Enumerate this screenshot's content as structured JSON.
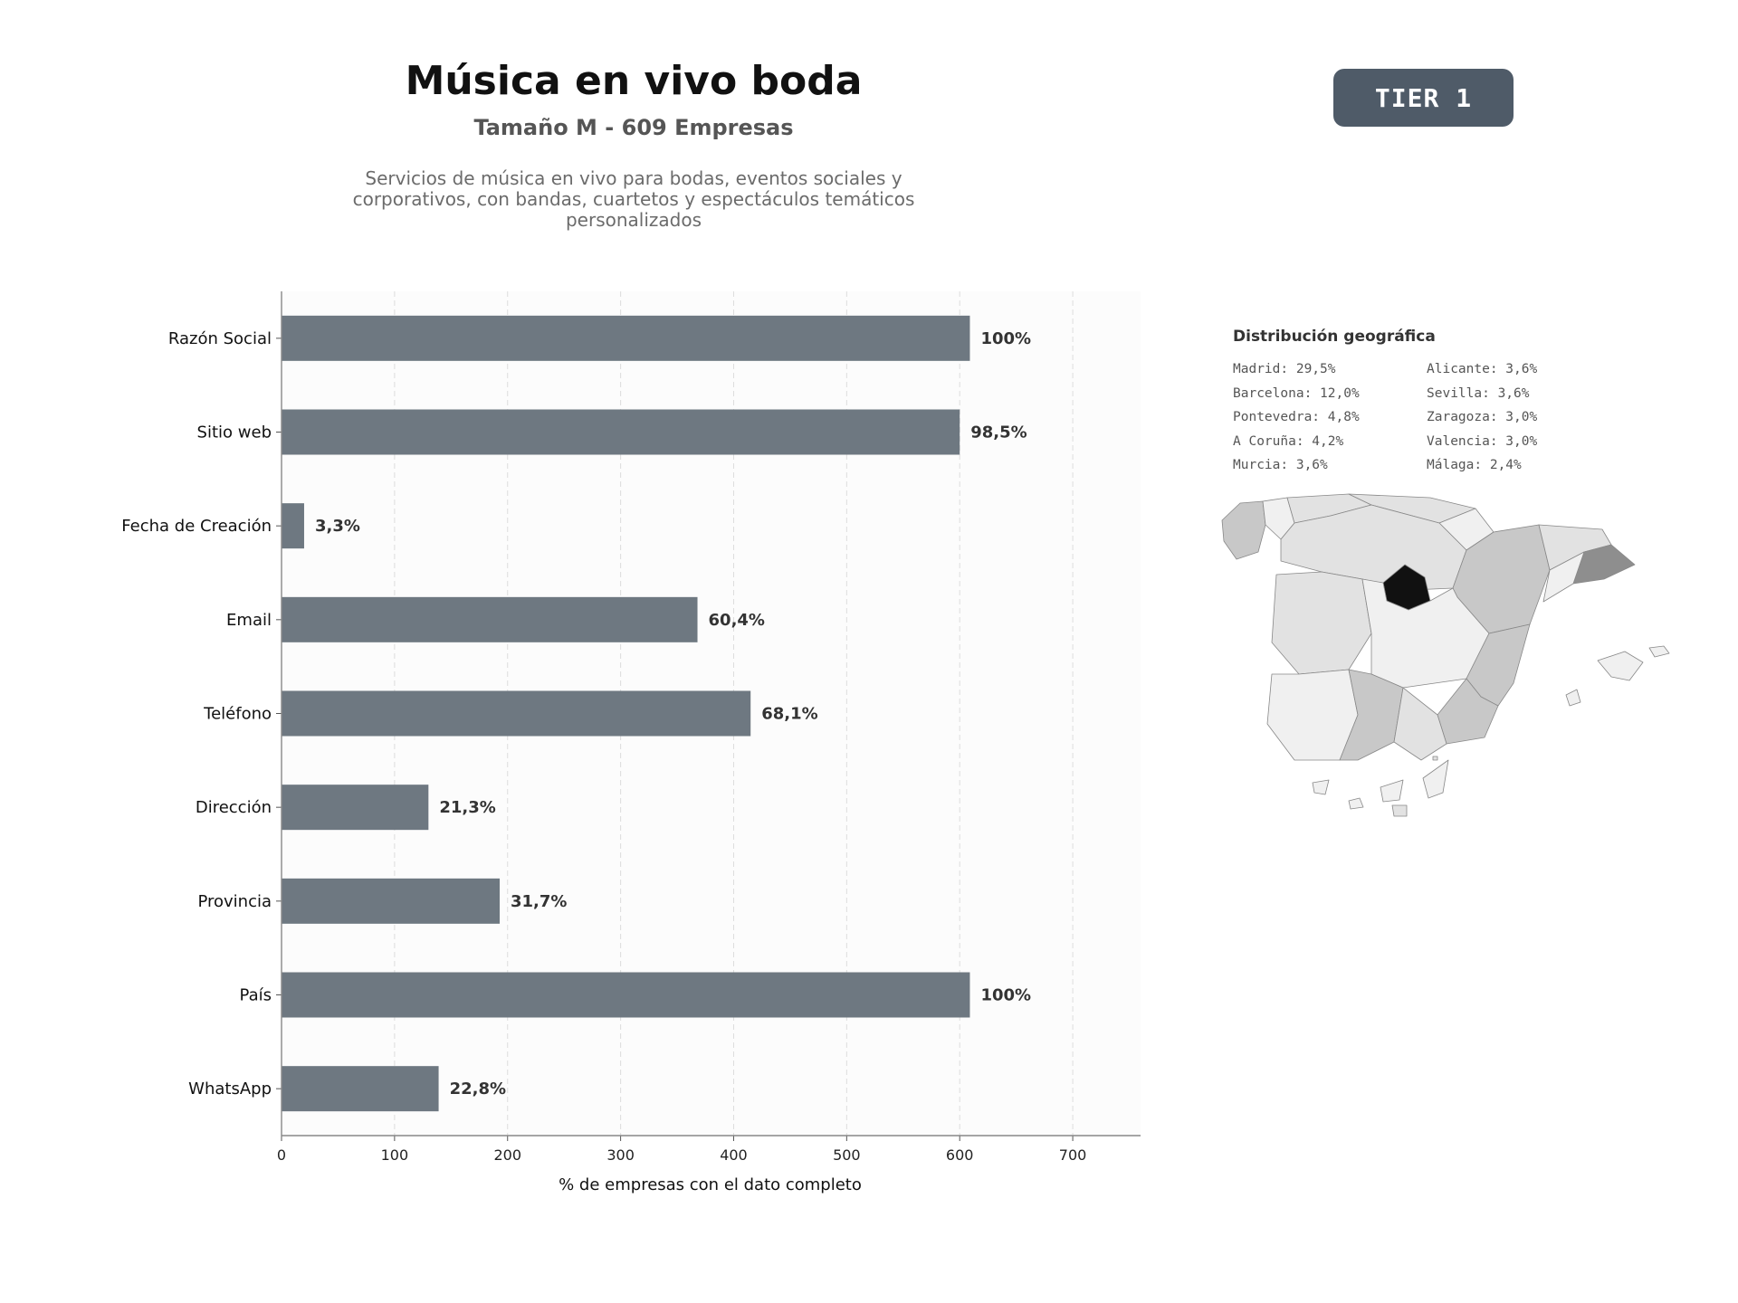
{
  "header": {
    "title": "Música en vivo boda",
    "subtitle": "Tamaño M - 609 Empresas",
    "description_lines": [
      "Servicios de música en vivo para bodas, eventos sociales y",
      "corporativos, con bandas, cuartetos y espectáculos temáticos",
      "personalizados"
    ],
    "tier": "TIER 1"
  },
  "chart_data": {
    "type": "bar",
    "orientation": "horizontal",
    "categories": [
      "Razón Social",
      "Sitio web",
      "Fecha de Creación",
      "Email",
      "Teléfono",
      "Dirección",
      "Provincia",
      "País",
      "WhatsApp"
    ],
    "values": [
      609,
      600,
      20,
      368,
      415,
      130,
      193,
      609,
      139
    ],
    "data_labels": [
      "100%",
      "98,5%",
      "3,3%",
      "60,4%",
      "68,1%",
      "21,3%",
      "31,7%",
      "100%",
      "22,8%"
    ],
    "xlabel": "% de empresas con el dato completo",
    "ylabel": "",
    "xlim": [
      0,
      760
    ],
    "xticks": [
      0,
      100,
      200,
      300,
      400,
      500,
      600,
      700
    ],
    "grid": "vertical dashed",
    "colors": {
      "bar": "#6e7881",
      "plot_bg": "#fcfcfc",
      "axis": "#888888"
    }
  },
  "geo": {
    "title": "Distribución geográfica",
    "items": [
      "Madrid: 29,5%",
      "Alicante: 3,6%",
      "Barcelona: 12,0%",
      "Sevilla: 3,6%",
      "Pontevedra: 4,8%",
      "Zaragoza: 3,0%",
      "A Coruña: 4,2%",
      "Valencia: 3,0%",
      "Murcia: 3,6%",
      "Málaga: 2,4%"
    ],
    "map_colors": {
      "madrid": "#111111",
      "barcelona": "#8e8e8e",
      "medium": "#c8c8c8",
      "light": "#e2e2e2",
      "lighter": "#f0f0f0",
      "border": "#888888"
    }
  }
}
